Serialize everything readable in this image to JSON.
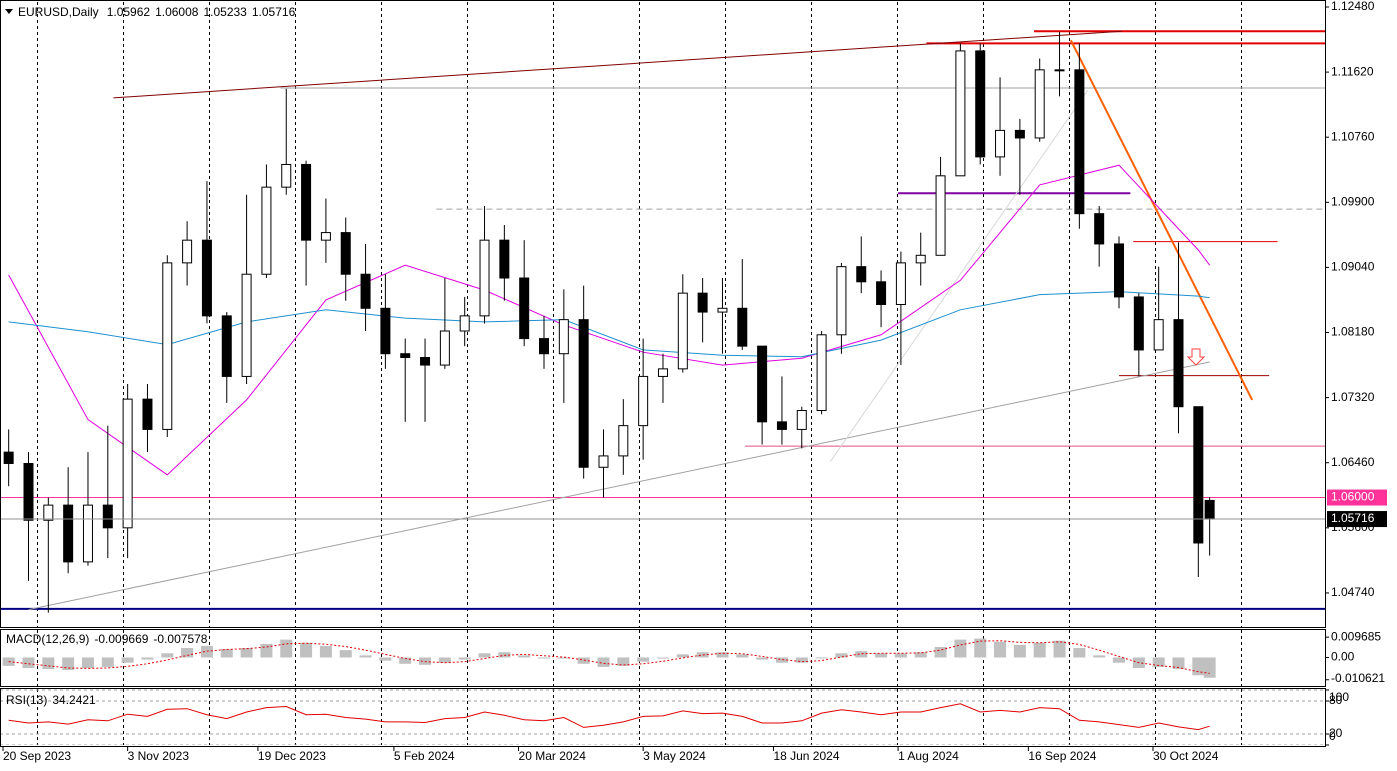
{
  "chart_data": {
    "type": "candlestick",
    "symbol": "EURUSD,Daily",
    "x": [
      "22 Sep 2023",
      "29 Sep 2023",
      "6 Oct 2023",
      "13 Oct 2023",
      "20 Oct 2023",
      "27 Oct 2023",
      "3 Nov 2023",
      "10 Nov 2023",
      "17 Nov 2023",
      "24 Nov 2023",
      "1 Dec 2023",
      "8 Dec 2023",
      "15 Dec 2023",
      "22 Dec 2023",
      "29 Dec 2023",
      "5 Jan 2024",
      "12 Jan 2024",
      "19 Jan 2024",
      "26 Jan 2024",
      "2 Feb 2024",
      "9 Feb 2024",
      "16 Feb 2024",
      "23 Feb 2024",
      "1 Mar 2024",
      "8 Mar 2024",
      "15 Mar 2024",
      "22 Mar 2024",
      "29 Mar 2024",
      "5 Apr 2024",
      "12 Apr 2024",
      "19 Apr 2024",
      "26 Apr 2024",
      "3 May 2024",
      "10 May 2024",
      "17 May 2024",
      "24 May 2024",
      "31 May 2024",
      "7 Jun 2024",
      "14 Jun 2024",
      "21 Jun 2024",
      "28 Jun 2024",
      "5 Jul 2024",
      "12 Jul 2024",
      "19 Jul 2024",
      "26 Jul 2024",
      "2 Aug 2024",
      "9 Aug 2024",
      "16 Aug 2024",
      "23 Aug 2024",
      "30 Aug 2024",
      "6 Sep 2024",
      "13 Sep 2024",
      "20 Sep 2024",
      "27 Sep 2024",
      "4 Oct 2024",
      "11 Oct 2024",
      "18 Oct 2024",
      "25 Oct 2024",
      "1 Nov 2024",
      "8 Nov 2024",
      "15 Nov 2024",
      "19 Nov 2024"
    ],
    "open": [
      1.066,
      1.0645,
      1.057,
      1.059,
      1.0515,
      1.059,
      1.056,
      1.073,
      1.069,
      1.091,
      1.094,
      1.084,
      1.076,
      1.0895,
      1.101,
      1.104,
      1.094,
      1.095,
      1.0895,
      1.085,
      1.079,
      1.0785,
      1.0775,
      1.082,
      1.084,
      1.094,
      1.089,
      1.081,
      1.079,
      1.0835,
      1.064,
      1.0655,
      1.0695,
      1.076,
      1.077,
      1.087,
      1.0845,
      1.085,
      1.08,
      1.07,
      1.069,
      1.0715,
      1.0815,
      1.0905,
      1.0885,
      1.0855,
      1.091,
      1.092,
      1.1025,
      1.119,
      1.105,
      1.1085,
      1.1075,
      1.1165,
      1.1165,
      1.0975,
      1.0935,
      1.0865,
      1.0795,
      1.0835,
      1.072,
      1.05962
    ],
    "high": [
      1.069,
      1.066,
      1.06,
      1.064,
      1.066,
      1.0695,
      1.075,
      1.075,
      1.092,
      1.0965,
      1.1018,
      1.0845,
      1.1,
      1.104,
      1.114,
      1.1045,
      1.0995,
      1.097,
      1.0935,
      1.0895,
      1.081,
      1.081,
      1.089,
      1.0865,
      1.0985,
      1.096,
      1.094,
      1.084,
      1.0875,
      1.088,
      1.069,
      1.073,
      1.081,
      1.079,
      1.0895,
      1.089,
      1.089,
      1.0915,
      1.08,
      1.076,
      1.072,
      1.082,
      1.091,
      1.0945,
      1.09,
      1.0925,
      1.095,
      1.105,
      1.12,
      1.12,
      1.1155,
      1.11,
      1.118,
      1.1215,
      1.12,
      1.0985,
      1.0945,
      1.087,
      1.0905,
      1.0937,
      1.072,
      1.06008
    ],
    "low": [
      1.0615,
      1.049,
      1.0448,
      1.05,
      1.051,
      1.052,
      1.052,
      1.066,
      1.068,
      1.088,
      1.083,
      1.0725,
      1.075,
      1.089,
      1.1,
      1.088,
      1.091,
      1.086,
      1.082,
      1.077,
      1.07,
      1.07,
      1.077,
      1.08,
      1.083,
      1.086,
      1.08,
      1.077,
      1.0725,
      1.0625,
      1.06,
      1.063,
      1.065,
      1.0725,
      1.0765,
      1.0805,
      1.079,
      1.0795,
      1.067,
      1.067,
      1.0665,
      1.071,
      1.079,
      1.087,
      1.0825,
      1.0775,
      1.088,
      1.092,
      1.103,
      1.104,
      1.1025,
      1.1,
      1.107,
      1.113,
      1.0955,
      1.0905,
      1.085,
      1.076,
      1.08,
      1.0685,
      1.0495,
      1.05233
    ],
    "close": [
      1.0645,
      1.057,
      1.059,
      1.0515,
      1.059,
      1.056,
      1.073,
      1.069,
      1.091,
      1.094,
      1.084,
      1.076,
      1.0895,
      1.101,
      1.104,
      1.094,
      1.095,
      1.0895,
      1.085,
      1.079,
      1.0785,
      1.0775,
      1.082,
      1.084,
      1.094,
      1.089,
      1.081,
      1.079,
      1.0835,
      1.064,
      1.0655,
      1.0695,
      1.076,
      1.077,
      1.087,
      1.0845,
      1.085,
      1.08,
      1.07,
      1.069,
      1.0715,
      1.0815,
      1.0905,
      1.0885,
      1.0855,
      1.091,
      1.092,
      1.1025,
      1.119,
      1.105,
      1.1085,
      1.1075,
      1.1165,
      1.1165,
      1.0975,
      1.0935,
      1.0865,
      1.0795,
      1.0835,
      1.072,
      1.054,
      1.05716
    ],
    "up_color": "#ffffff",
    "down_color": "#000000",
    "ylim": [
      1.0429,
      1.12546
    ],
    "yticks": [
      {
        "value": 1.1248,
        "label": "1.12480"
      },
      {
        "value": 1.1162,
        "label": "1.11620"
      },
      {
        "value": 1.1076,
        "label": "1.10760"
      },
      {
        "value": 1.099,
        "label": "1.09900"
      },
      {
        "value": 1.0904,
        "label": "1.09040"
      },
      {
        "value": 1.0818,
        "label": "1.08180"
      },
      {
        "value": 1.0732,
        "label": "1.07320"
      },
      {
        "value": 1.0646,
        "label": "1.06460"
      },
      {
        "value": 1.056,
        "label": "1.05600"
      },
      {
        "value": 1.0474,
        "label": "1.04740"
      }
    ],
    "xticks": [
      "20 Sep 2023",
      "3 Nov 2023",
      "19 Dec 2023",
      "5 Feb 2024",
      "20 Mar 2024",
      "3 May 2024",
      "18 Jun 2024",
      "1 Aug 2024",
      "16 Sep 2024",
      "30 Oct 2024"
    ],
    "ma": [
      {
        "color": "#e000e0",
        "x": [
          "22 Sep 2023",
          "20 Oct 2023",
          "17 Nov 2023",
          "15 Dec 2023",
          "12 Jan 2024",
          "9 Feb 2024",
          "8 Mar 2024",
          "5 Apr 2024",
          "3 May 2024",
          "31 May 2024",
          "28 Jun 2024",
          "26 Jul 2024",
          "23 Aug 2024",
          "20 Sep 2024",
          "18 Oct 2024",
          "15 Nov 2024",
          "19 Nov 2024"
        ],
        "values": [
          1.0894,
          1.0703,
          1.063,
          1.0729,
          1.0861,
          1.0907,
          1.0874,
          1.0828,
          1.0792,
          1.0775,
          1.0784,
          1.0815,
          1.0887,
          1.1013,
          1.1039,
          1.0927,
          1.0907
        ]
      },
      {
        "color": "#1e90d0",
        "x": [
          "22 Sep 2023",
          "20 Oct 2023",
          "17 Nov 2023",
          "15 Dec 2023",
          "12 Jan 2024",
          "9 Feb 2024",
          "8 Mar 2024",
          "5 Apr 2024",
          "3 May 2024",
          "31 May 2024",
          "28 Jun 2024",
          "26 Jul 2024",
          "23 Aug 2024",
          "20 Sep 2024",
          "18 Oct 2024",
          "15 Nov 2024",
          "19 Nov 2024"
        ],
        "values": [
          1.0832,
          1.0819,
          1.0802,
          1.0832,
          1.0848,
          1.0837,
          1.0832,
          1.0835,
          1.0795,
          1.0788,
          1.0786,
          1.0808,
          1.0848,
          1.0868,
          1.0872,
          1.0866,
          1.0864
        ]
      }
    ],
    "levels": [
      {
        "value": 1.1216,
        "color": "#e00000",
        "width": 2,
        "from": "18 Sep 2024"
      },
      {
        "value": 1.12,
        "color": "#e00000",
        "width": 2,
        "from": "11 Aug 2024"
      },
      {
        "value": 1.1141,
        "color": "#a0a0a0",
        "width": 1,
        "from": "27 Dec 2023"
      },
      {
        "value": 1.1002,
        "color": "#8000a0",
        "width": 2,
        "from": "1 Aug 2024",
        "to": "22 Oct 2024"
      },
      {
        "value": 1.0981,
        "color": "#a0a0a0",
        "width": 1,
        "dash": true,
        "from": "20 Feb 2024"
      },
      {
        "value": 1.0938,
        "color": "#e00000",
        "width": 1,
        "from": "23 Oct 2024",
        "to": "13 Dec 2024"
      },
      {
        "value": 1.0761,
        "color": "#a00000",
        "width": 1,
        "from": "18 Oct 2024",
        "to": "10 Dec 2024"
      },
      {
        "value": 1.0668,
        "color": "#e05080",
        "width": 1,
        "from": "8 Jun 2024"
      },
      {
        "value": 1.06,
        "color": "#ff3399",
        "width": 1,
        "label": "1.06000"
      },
      {
        "value": 1.0453,
        "color": "#000080",
        "width": 2
      }
    ],
    "trendlines": [
      {
        "x": [
          "29 Oct 2023",
          "19 Oct 2024"
        ],
        "y": [
          1.1128,
          1.1216
        ],
        "color": "#800000",
        "width": 1
      },
      {
        "x": [
          "29 Sep 2023",
          "19 Nov 2024"
        ],
        "y": [
          1.0452,
          1.0779
        ],
        "color": "#a0a0a0",
        "width": 1
      },
      {
        "x": [
          "1 Oct 2024",
          "4 Dec 2024"
        ],
        "y": [
          1.1204,
          1.0729
        ],
        "color": "#ff6000",
        "width": 2
      },
      {
        "x": [
          "8 Jul 2024",
          "7 Oct 2024"
        ],
        "y": [
          1.0647,
          1.1138
        ],
        "color": "#d8d8d8",
        "width": 1
      }
    ],
    "macd": {
      "title": "MACD(12,26,9)",
      "values": [
        -0.004,
        -0.005,
        -0.0055,
        -0.006,
        -0.005,
        -0.0045,
        -0.0025,
        -0.001,
        0.002,
        0.0045,
        0.0055,
        0.004,
        0.0045,
        0.0065,
        0.0085,
        0.007,
        0.0055,
        0.0035,
        0.001,
        -0.0015,
        -0.003,
        -0.0035,
        -0.0025,
        -0.001,
        0.002,
        0.0025,
        0.001,
        -0.0005,
        -0.0005,
        -0.003,
        -0.0045,
        -0.004,
        -0.002,
        -0.0005,
        0.0015,
        0.0025,
        0.0025,
        0.0015,
        -0.001,
        -0.0025,
        -0.0025,
        -0.0005,
        0.002,
        0.003,
        0.002,
        0.002,
        0.0025,
        0.005,
        0.0085,
        0.009,
        0.0075,
        0.006,
        0.007,
        0.008,
        0.0045,
        0.001,
        -0.0025,
        -0.005,
        -0.0045,
        -0.0055,
        -0.0085,
        -0.009669
      ],
      "signal": [
        -0.002,
        -0.003,
        -0.004,
        -0.005,
        -0.0052,
        -0.005,
        -0.0042,
        -0.003,
        -0.0012,
        0.001,
        0.003,
        0.0038,
        0.0042,
        0.005,
        0.0065,
        0.0068,
        0.0063,
        0.0052,
        0.0035,
        0.0015,
        -0.0005,
        -0.002,
        -0.0025,
        -0.002,
        -0.0005,
        0.001,
        0.0015,
        0.0008,
        0.0002,
        -0.0012,
        -0.0028,
        -0.0036,
        -0.003,
        -0.0018,
        -0.0002,
        0.0012,
        0.002,
        0.0018,
        0.0005,
        -0.001,
        -0.002,
        -0.0015,
        0.0002,
        0.0018,
        0.002,
        0.002,
        0.0022,
        0.0035,
        0.006,
        0.0078,
        0.008,
        0.0072,
        0.007,
        0.0075,
        0.0062,
        0.0035,
        0.0005,
        -0.0025,
        -0.0038,
        -0.0048,
        -0.0068,
        -0.007578
      ],
      "color": "#c0c0c0",
      "signal_color": "#e00000",
      "ylim": [
        -0.0136,
        0.0131
      ],
      "yticks": [
        0.009685,
        {
          "value": 0,
          "label": "0.00"
        },
        -0.010621
      ]
    },
    "rsi": {
      "title": "RSI(13)",
      "values": [
        45,
        40,
        42,
        38,
        46,
        44,
        56,
        52,
        65,
        66,
        55,
        48,
        60,
        68,
        70,
        55,
        56,
        50,
        47,
        42,
        42,
        41,
        48,
        50,
        60,
        54,
        46,
        44,
        50,
        32,
        36,
        42,
        52,
        53,
        62,
        57,
        58,
        52,
        40,
        40,
        44,
        58,
        64,
        60,
        55,
        60,
        60,
        68,
        75,
        60,
        63,
        60,
        68,
        66,
        45,
        42,
        37,
        32,
        40,
        33,
        28,
        34.2421
      ],
      "color": "#e00000",
      "ylim": [
        0,
        100
      ],
      "yticks": [
        100,
        80,
        20,
        0
      ]
    }
  }
}
